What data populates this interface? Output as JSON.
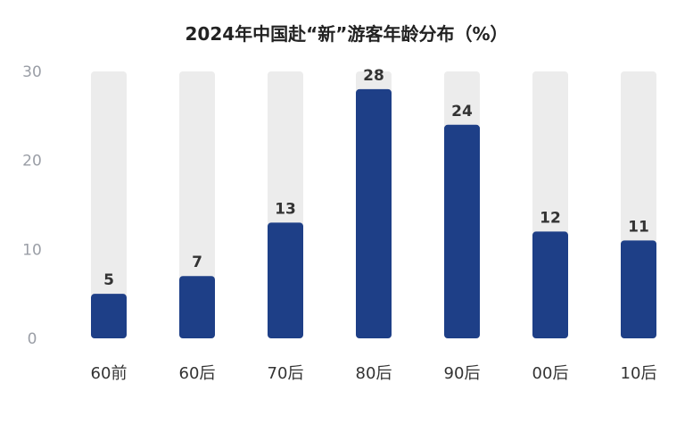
{
  "chart_data": {
    "type": "bar",
    "title": "2024年中国赴“新”游客年龄分布（%）",
    "categories": [
      "60前",
      "60后",
      "70后",
      "80后",
      "90后",
      "00后",
      "10后"
    ],
    "values": [
      5,
      7,
      13,
      28,
      24,
      12,
      11
    ],
    "ylim": [
      0,
      30
    ],
    "yticks": [
      0,
      10,
      20,
      30
    ],
    "grid": false,
    "legend": "none",
    "colors": {
      "bar": "#1e3f87",
      "track": "#ececec"
    }
  }
}
